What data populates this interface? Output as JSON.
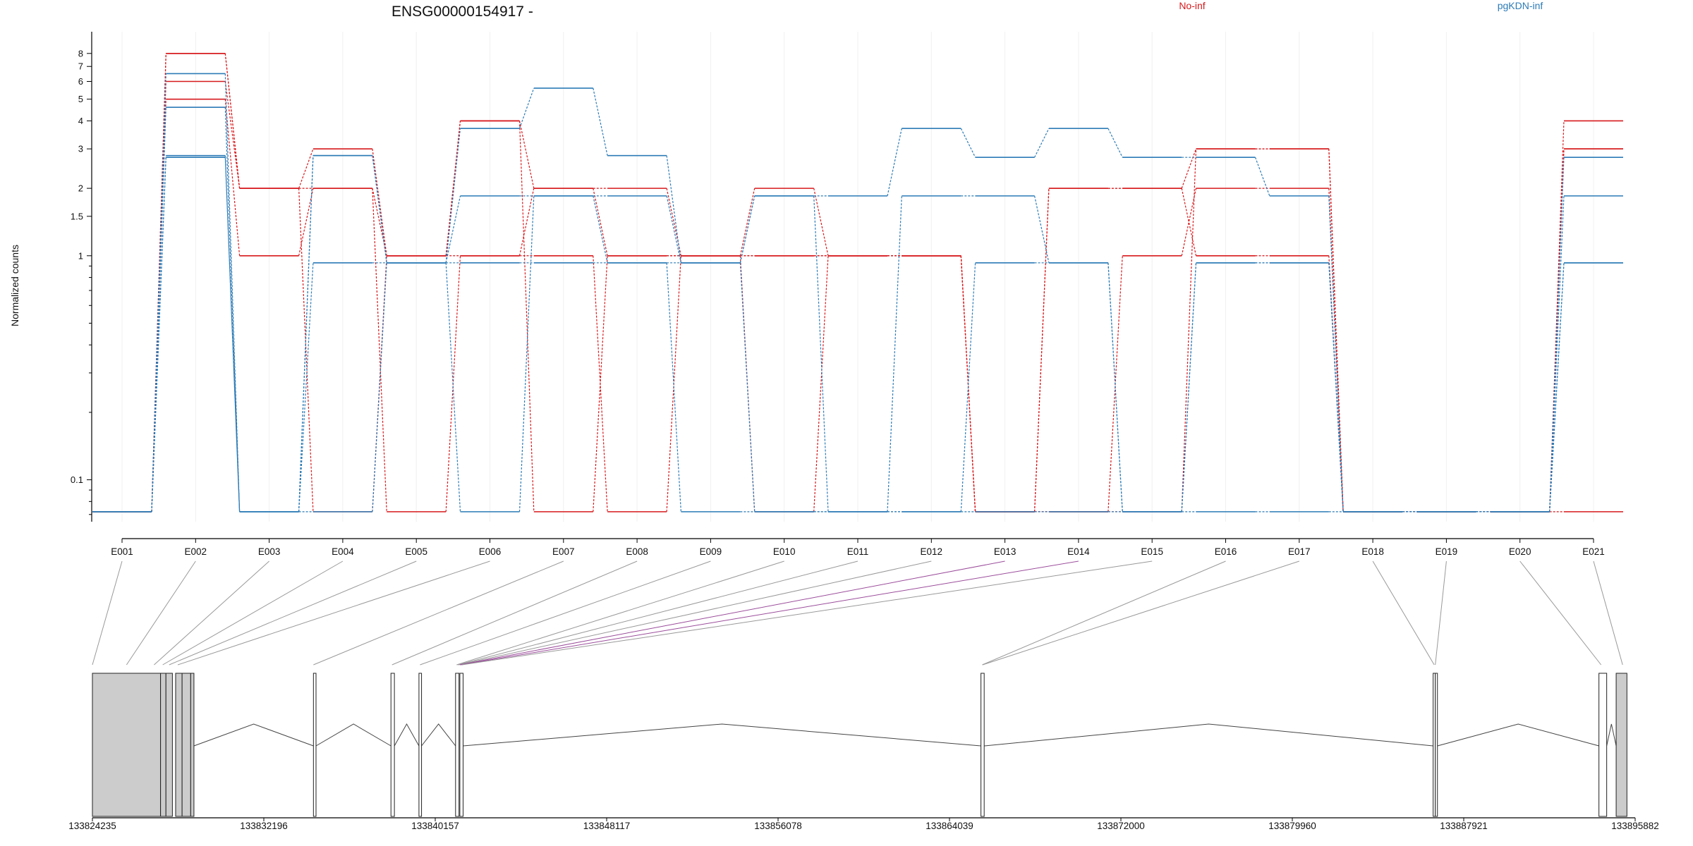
{
  "chart_data": {
    "type": "line",
    "title": "ENSG00000154917 -",
    "ylabel": "Normalized counts",
    "yscale": "log",
    "ylim": [
      0.065,
      10
    ],
    "y_ticks": [
      {
        "value": 0.1,
        "label": "0.1"
      },
      {
        "value": 1,
        "label": "1"
      },
      {
        "value": 1.5,
        "label": "1.5"
      },
      {
        "value": 2,
        "label": "2"
      },
      {
        "value": 3,
        "label": "3"
      },
      {
        "value": 4,
        "label": "4"
      },
      {
        "value": 5,
        "label": "5"
      },
      {
        "value": 6,
        "label": "6"
      },
      {
        "value": 7,
        "label": "7"
      },
      {
        "value": 8,
        "label": "8"
      }
    ],
    "categories": [
      "E001",
      "E002",
      "E003",
      "E004",
      "E005",
      "E006",
      "E007",
      "E008",
      "E009",
      "E010",
      "E011",
      "E012",
      "E013",
      "E014",
      "E015",
      "E016",
      "E017",
      "E018",
      "E019",
      "E020",
      "E021"
    ],
    "legend": [
      {
        "label": "No-inf",
        "color": "#d7191c"
      },
      {
        "label": "pgKDN-inf",
        "color": "#2c7bb6"
      }
    ],
    "series": [
      {
        "group": "No-inf",
        "color": "#d7191c",
        "values": [
          0.072,
          8.0,
          2.0,
          3.0,
          1.0,
          4.0,
          2.0,
          1.0,
          1.0,
          2.0,
          1.0,
          1.0,
          0.072,
          2.0,
          2.0,
          3.0,
          3.0,
          0.072,
          0.072,
          0.072,
          4.0
        ]
      },
      {
        "group": "No-inf",
        "color": "#d7191c",
        "values": [
          0.072,
          6.0,
          2.0,
          2.0,
          1.0,
          1.0,
          2.0,
          2.0,
          1.0,
          1.0,
          1.0,
          1.0,
          0.072,
          0.072,
          1.0,
          2.0,
          2.0,
          0.072,
          0.072,
          0.072,
          3.0
        ]
      },
      {
        "group": "No-inf",
        "color": "#d7191c",
        "values": [
          0.072,
          5.0,
          1.0,
          2.0,
          0.072,
          1.0,
          1.0,
          0.072,
          1.0,
          1.0,
          1.0,
          1.0,
          0.072,
          2.0,
          2.0,
          1.0,
          1.0,
          0.072,
          0.072,
          0.072,
          3.0
        ]
      },
      {
        "group": "No-inf",
        "color": "#d7191c",
        "values": [
          0.072,
          8.0,
          2.0,
          0.072,
          1.0,
          4.0,
          0.072,
          1.0,
          1.0,
          0.072,
          1.0,
          1.0,
          0.072,
          0.072,
          0.072,
          3.0,
          3.0,
          0.072,
          0.072,
          0.072,
          0.072
        ]
      },
      {
        "group": "pgKDN-inf",
        "color": "#2c7bb6",
        "values": [
          0.072,
          6.5,
          0.072,
          2.8,
          0.93,
          3.7,
          5.6,
          2.8,
          0.93,
          1.85,
          1.85,
          3.7,
          2.75,
          3.7,
          2.75,
          2.75,
          1.85,
          0.072,
          0.072,
          0.072,
          2.75
        ]
      },
      {
        "group": "pgKDN-inf",
        "color": "#2c7bb6",
        "values": [
          0.072,
          4.6,
          0.072,
          0.93,
          0.93,
          1.85,
          1.85,
          1.85,
          0.93,
          1.85,
          0.072,
          1.85,
          1.85,
          0.93,
          0.072,
          0.93,
          0.93,
          0.072,
          0.072,
          0.072,
          1.85
        ]
      },
      {
        "group": "pgKDN-inf",
        "color": "#2c7bb6",
        "values": [
          0.072,
          2.8,
          0.072,
          2.8,
          0.93,
          0.93,
          0.93,
          0.93,
          0.072,
          0.072,
          0.072,
          0.072,
          0.93,
          0.93,
          0.072,
          0.93,
          0.93,
          0.072,
          0.072,
          0.072,
          0.93
        ]
      },
      {
        "group": "pgKDN-inf",
        "color": "#2c7bb6",
        "values": [
          0.072,
          2.75,
          0.072,
          0.072,
          0.93,
          0.072,
          1.85,
          0.93,
          0.93,
          0.072,
          0.072,
          0.072,
          0.072,
          0.072,
          0.072,
          0.072,
          0.072,
          0.072,
          0.072,
          0.072,
          0.93
        ]
      }
    ],
    "gene_model": {
      "coord_ticks": [
        "133824235",
        "133832196",
        "133840157",
        "133848117",
        "133856078",
        "133864039",
        "133872000",
        "133879960",
        "133887921",
        "133895882"
      ],
      "coord_range": [
        133824235,
        133895882
      ],
      "exons": [
        {
          "start": 133824235,
          "end": 133827400,
          "filled": true
        },
        {
          "start": 133827400,
          "end": 133827650,
          "filled": true
        },
        {
          "start": 133827650,
          "end": 133827950,
          "filled": true
        },
        {
          "start": 133828100,
          "end": 133828400,
          "filled": true
        },
        {
          "start": 133828400,
          "end": 133828800,
          "filled": true
        },
        {
          "start": 133828800,
          "end": 133828950,
          "filled": true
        },
        {
          "start": 133834500,
          "end": 133834620,
          "filled": false
        },
        {
          "start": 133838100,
          "end": 133838260,
          "filled": false
        },
        {
          "start": 133839400,
          "end": 133839520,
          "filled": false
        },
        {
          "start": 133841100,
          "end": 133841260,
          "filled": false
        },
        {
          "start": 133841300,
          "end": 133841450,
          "filled": false
        },
        {
          "start": 133865500,
          "end": 133865650,
          "filled": false
        },
        {
          "start": 133886500,
          "end": 133886600,
          "filled": false
        },
        {
          "start": 133886600,
          "end": 133886700,
          "filled": false
        },
        {
          "start": 133894200,
          "end": 133894560,
          "filled": false
        },
        {
          "start": 133895000,
          "end": 133895500,
          "filled": true
        }
      ],
      "exon_map": [
        133824235,
        133825820,
        133827100,
        133827500,
        133827800,
        133828200,
        133834500,
        133838150,
        133839450,
        133841150,
        133841200,
        133841250,
        133841300,
        133841350,
        133841400,
        133865560,
        133865580,
        133886550,
        133886600,
        133894300,
        133895300
      ]
    }
  }
}
